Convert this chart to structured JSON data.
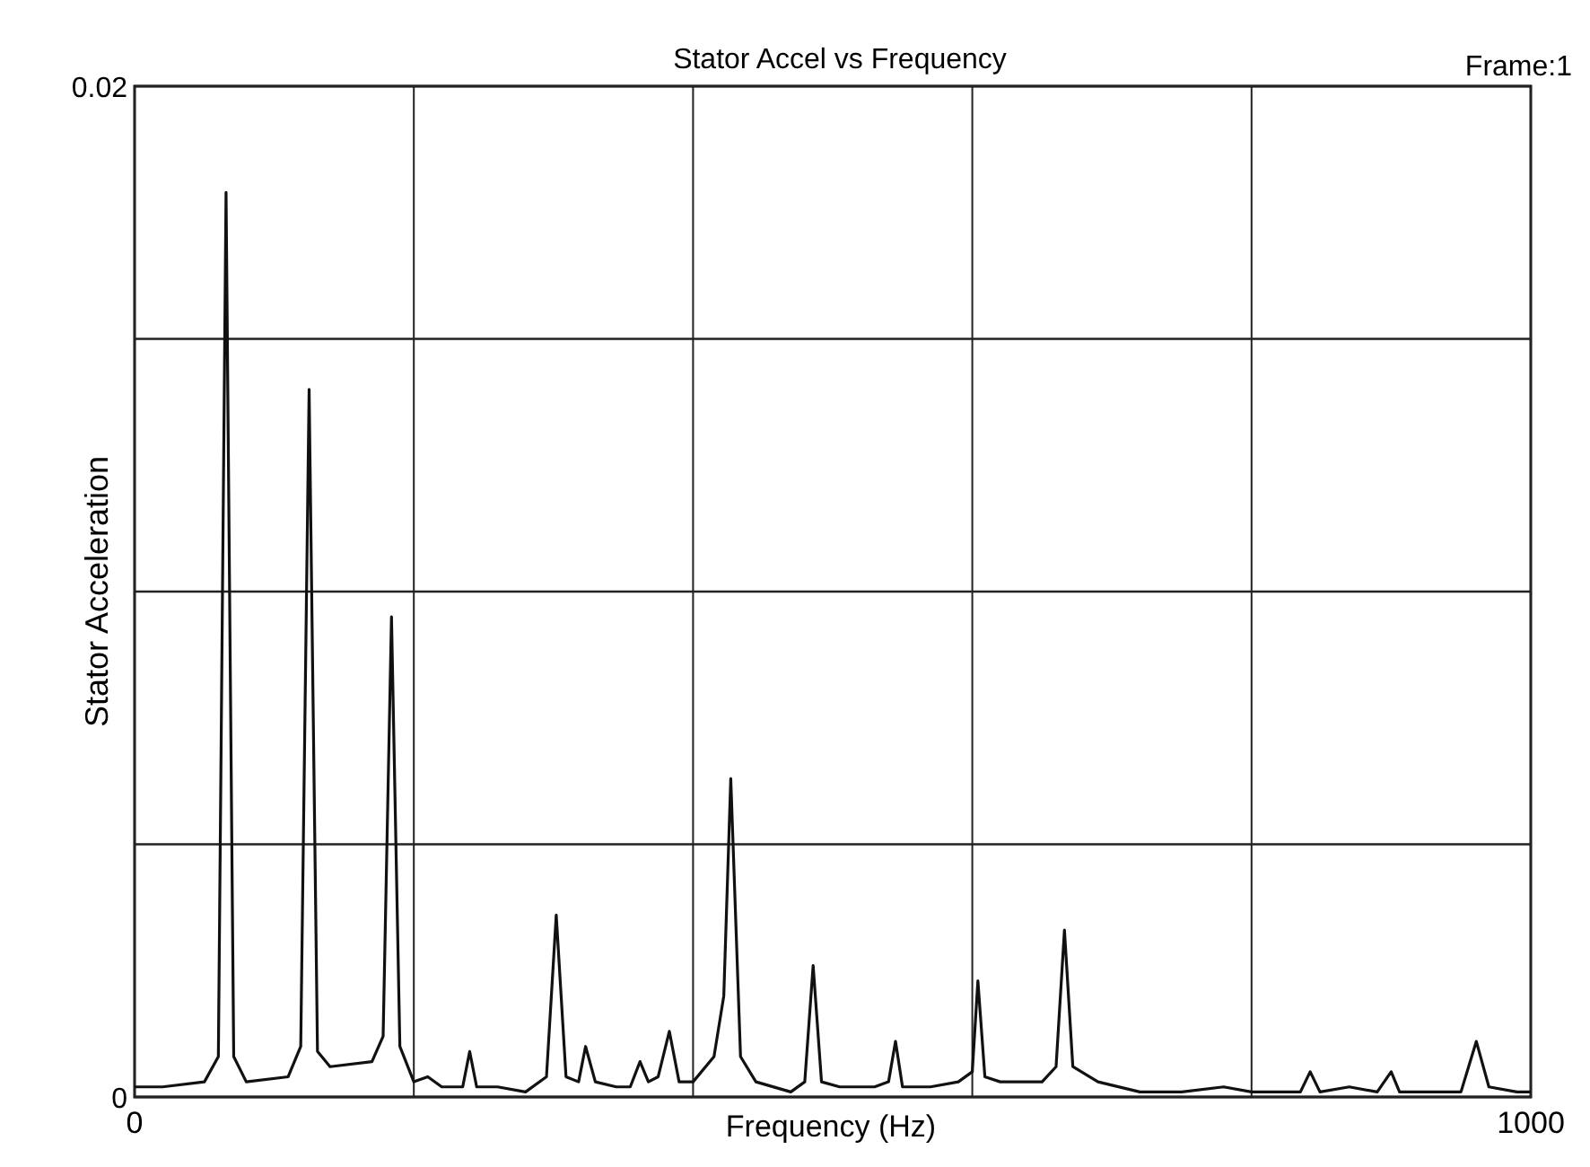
{
  "chart_data": {
    "type": "line",
    "title": "Stator Accel vs Frequency",
    "xlabel": "Frequency (Hz)",
    "ylabel": "Stator Acceleration",
    "annotations": [
      "Frame:1"
    ],
    "x": [
      0,
      20,
      50,
      60,
      65.5,
      71,
      80,
      110,
      119,
      125,
      131,
      140,
      170,
      178,
      184,
      190,
      200,
      210,
      220,
      235,
      240,
      245,
      260,
      280,
      295,
      302,
      309,
      318,
      323,
      330,
      345,
      355,
      362,
      368,
      375,
      383,
      390,
      400,
      415,
      422,
      427,
      434,
      445,
      470,
      480,
      486,
      492,
      505,
      530,
      540,
      545,
      550,
      570,
      590,
      600,
      604,
      609,
      620,
      650,
      660,
      666,
      672,
      690,
      720,
      750,
      780,
      800,
      820,
      835,
      842,
      849,
      870,
      890,
      900,
      906,
      930,
      950,
      961,
      970,
      990,
      1000
    ],
    "series": [
      {
        "color": "#111111",
        "values": [
          0.0002,
          0.0002,
          0.0003,
          0.0008,
          0.0179,
          0.0008,
          0.0003,
          0.0004,
          0.001,
          0.014,
          0.0009,
          0.0006,
          0.0007,
          0.0012,
          0.0095,
          0.001,
          0.0003,
          0.0004,
          0.0002,
          0.0002,
          0.0009,
          0.0002,
          0.0002,
          0.0001,
          0.0004,
          0.0036,
          0.0004,
          0.0003,
          0.001,
          0.0003,
          0.0002,
          0.0002,
          0.0007,
          0.0003,
          0.0004,
          0.0013,
          0.0003,
          0.0003,
          0.0008,
          0.002,
          0.0063,
          0.0008,
          0.0003,
          0.0001,
          0.0003,
          0.0026,
          0.0003,
          0.0002,
          0.0002,
          0.0003,
          0.0011,
          0.0002,
          0.0002,
          0.0003,
          0.0005,
          0.0023,
          0.0004,
          0.0003,
          0.0003,
          0.0006,
          0.0033,
          0.0006,
          0.0003,
          0.0001,
          0.0001,
          0.0002,
          0.0001,
          0.0001,
          0.0001,
          0.0005,
          0.0001,
          0.0002,
          0.0001,
          0.0005,
          0.0001,
          0.0001,
          0.0001,
          0.0011,
          0.0002,
          0.0001,
          0.0001
        ]
      }
    ],
    "xlim": [
      0,
      1000
    ],
    "xticks": [
      0,
      {
        "value": 200,
        "label": null
      },
      {
        "value": 400,
        "label": null
      },
      {
        "value": 600,
        "label": null
      },
      {
        "value": 800,
        "label": null
      },
      1000
    ],
    "ylim": [
      0,
      0.02
    ],
    "yticks": [
      0,
      {
        "value": 0.005,
        "label": null
      },
      {
        "value": 0.01,
        "label": null
      },
      {
        "value": 0.015,
        "label": null
      },
      0.02
    ],
    "grid": true,
    "line_style": "solid",
    "marker": "none"
  }
}
